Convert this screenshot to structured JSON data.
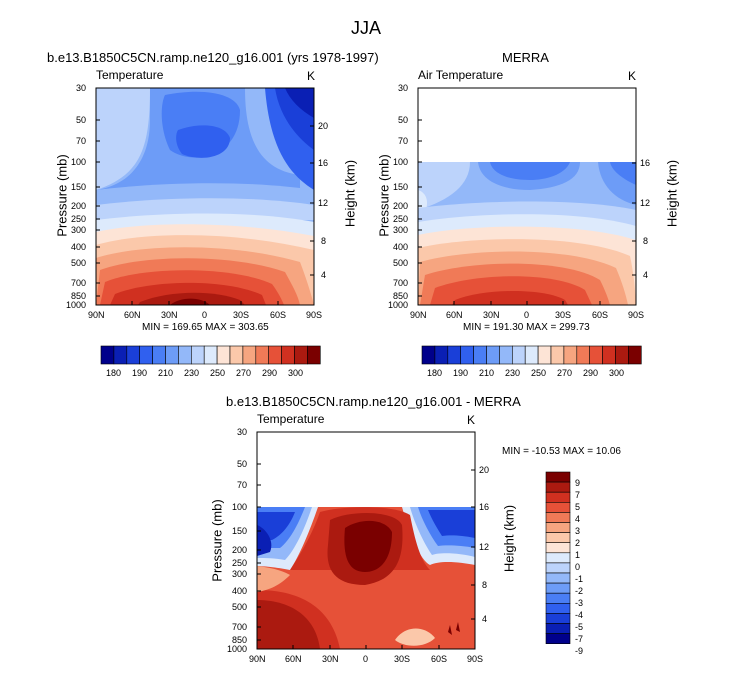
{
  "figure_title": "JJA",
  "colors": {
    "full_field": [
      "#00008b",
      "#0a1fb4",
      "#1a3fd8",
      "#3060ef",
      "#4a7ef5",
      "#6d9cf7",
      "#93b8f9",
      "#bcd3fb",
      "#ddeafc",
      "#fde4d6",
      "#fbc8aa",
      "#f6a580",
      "#f07a57",
      "#e65138",
      "#d03020",
      "#ab1a10",
      "#7a0000"
    ],
    "diff_field": [
      "#00008b",
      "#0a1fb4",
      "#1a3fd8",
      "#3060ef",
      "#4a7ef5",
      "#6d9cf7",
      "#93b8f9",
      "#bcd3fb",
      "#ddeafc",
      "#fde4d6",
      "#fbc8aa",
      "#f6a580",
      "#f07a57",
      "#e65138",
      "#d03020",
      "#ab1a10",
      "#7a0000"
    ]
  },
  "chart_data": [
    {
      "type": "heatmap",
      "title": "b.e13.B1850C5CN.ramp.ne120_g16.001 (yrs 1978-1997)",
      "left_label": "Temperature",
      "units": "K",
      "xlabel": "",
      "ylabel": "Pressure (mb)",
      "ylabel_right": "Height (km)",
      "x_ticks": [
        "90N",
        "60N",
        "30N",
        "0",
        "30S",
        "60S",
        "90S"
      ],
      "y_ticks": [
        "30",
        "50",
        "70",
        "100",
        "150",
        "200",
        "250",
        "300",
        "400",
        "500",
        "700",
        "850",
        "1000"
      ],
      "y_ticks_right": [
        "20",
        "16",
        "12",
        "8",
        "4"
      ],
      "stats_text": "MIN = 169.65   MAX = 303.65",
      "colorbar_labels": [
        "180",
        "190",
        "210",
        "230",
        "250",
        "270",
        "290",
        "300"
      ]
    },
    {
      "type": "heatmap",
      "title": "MERRA",
      "left_label": "Air Temperature",
      "units": "K",
      "xlabel": "",
      "ylabel": "Pressure (mb)",
      "ylabel_right": "Height (km)",
      "x_ticks": [
        "90N",
        "60N",
        "30N",
        "0",
        "30S",
        "60S",
        "90S"
      ],
      "y_ticks": [
        "30",
        "50",
        "70",
        "100",
        "150",
        "200",
        "250",
        "300",
        "400",
        "500",
        "700",
        "850",
        "1000"
      ],
      "y_ticks_right": [
        "16",
        "12",
        "8",
        "4"
      ],
      "stats_text": "MIN = 191.30   MAX = 299.73",
      "colorbar_labels": [
        "180",
        "190",
        "210",
        "230",
        "250",
        "270",
        "290",
        "300"
      ]
    },
    {
      "type": "heatmap",
      "title": "b.e13.B1850C5CN.ramp.ne120_g16.001 - MERRA",
      "left_label": "Temperature",
      "units": "K",
      "xlabel": "",
      "ylabel": "Pressure (mb)",
      "ylabel_right": "Height (km)",
      "x_ticks": [
        "90N",
        "60N",
        "30N",
        "0",
        "30S",
        "60S",
        "90S"
      ],
      "y_ticks": [
        "30",
        "50",
        "70",
        "100",
        "150",
        "200",
        "250",
        "300",
        "400",
        "500",
        "700",
        "850",
        "1000"
      ],
      "y_ticks_right": [
        "20",
        "16",
        "12",
        "8",
        "4"
      ],
      "stats_text": "MIN = -10.53   MAX =  10.06",
      "colorbar_labels": [
        "9",
        "7",
        "5",
        "4",
        "3",
        "2",
        "1",
        "0",
        "-1",
        "-2",
        "-3",
        "-4",
        "-5",
        "-7",
        "-9"
      ]
    }
  ]
}
